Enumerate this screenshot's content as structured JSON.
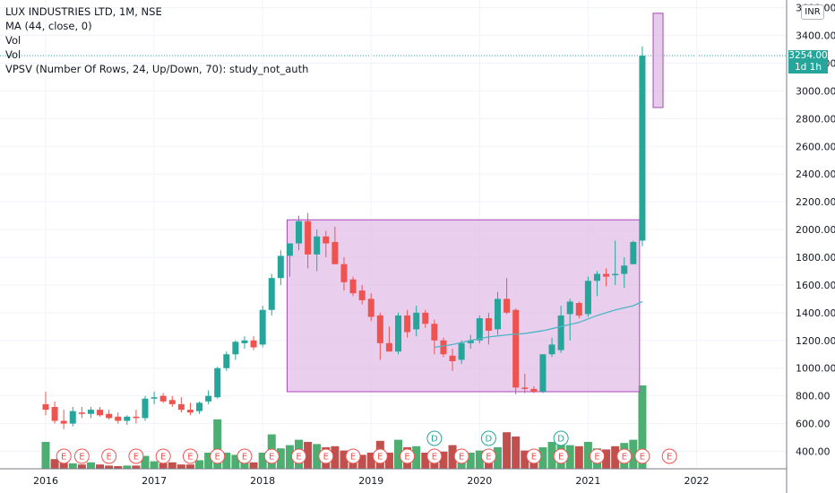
{
  "legend": {
    "title": "LUX INDUSTRIES LTD, 1M, NSE",
    "ma": "MA (44, close, 0)",
    "vol1": "Vol",
    "vol2": "Vol",
    "vpsv": "VPSV (Number Of Rows, 24, Up/Down, 70): study_not_auth"
  },
  "currency_badge": "INR",
  "current_price": {
    "value": "3254.00",
    "interval": "1d 1h"
  },
  "colors": {
    "up": "#26a69a",
    "down": "#ef5350",
    "vol_up": "#4caf71",
    "vol_down": "#c0504d",
    "ma": "#4db6c4",
    "box_fill": "#e1bee7",
    "box_stroke": "#ab47bc"
  },
  "event_icons": {
    "earnings": "E",
    "dividend": "D"
  },
  "chart_data": {
    "type": "candlestick",
    "title": "LUX INDUSTRIES LTD, 1M, NSE",
    "y_range": [
      300,
      3600
    ],
    "y_ticks": [
      400,
      600,
      800,
      1000,
      1200,
      1400,
      1600,
      1800,
      2000,
      2200,
      2400,
      2600,
      2800,
      3000,
      3200,
      3400,
      3600
    ],
    "x_ticks": [
      "2016",
      "2017",
      "2018",
      "2019",
      "2020",
      "2021",
      "2022"
    ],
    "candles": [
      {
        "t": "2016-01",
        "o": 740,
        "h": 830,
        "l": 660,
        "c": 700
      },
      {
        "t": "2016-02",
        "o": 720,
        "h": 760,
        "l": 600,
        "c": 620
      },
      {
        "t": "2016-03",
        "o": 620,
        "h": 700,
        "l": 560,
        "c": 600
      },
      {
        "t": "2016-04",
        "o": 600,
        "h": 720,
        "l": 580,
        "c": 690
      },
      {
        "t": "2016-05",
        "o": 680,
        "h": 720,
        "l": 640,
        "c": 670
      },
      {
        "t": "2016-06",
        "o": 670,
        "h": 720,
        "l": 640,
        "c": 700
      },
      {
        "t": "2016-07",
        "o": 700,
        "h": 720,
        "l": 650,
        "c": 660
      },
      {
        "t": "2016-08",
        "o": 670,
        "h": 700,
        "l": 630,
        "c": 640
      },
      {
        "t": "2016-09",
        "o": 650,
        "h": 680,
        "l": 600,
        "c": 620
      },
      {
        "t": "2016-10",
        "o": 620,
        "h": 660,
        "l": 590,
        "c": 650
      },
      {
        "t": "2016-11",
        "o": 650,
        "h": 700,
        "l": 600,
        "c": 640
      },
      {
        "t": "2016-12",
        "o": 640,
        "h": 800,
        "l": 620,
        "c": 780
      },
      {
        "t": "2017-01",
        "o": 780,
        "h": 830,
        "l": 740,
        "c": 790
      },
      {
        "t": "2017-02",
        "o": 800,
        "h": 820,
        "l": 750,
        "c": 760
      },
      {
        "t": "2017-03",
        "o": 770,
        "h": 800,
        "l": 720,
        "c": 740
      },
      {
        "t": "2017-04",
        "o": 740,
        "h": 790,
        "l": 680,
        "c": 700
      },
      {
        "t": "2017-05",
        "o": 700,
        "h": 750,
        "l": 660,
        "c": 680
      },
      {
        "t": "2017-06",
        "o": 690,
        "h": 760,
        "l": 670,
        "c": 750
      },
      {
        "t": "2017-07",
        "o": 760,
        "h": 840,
        "l": 740,
        "c": 800
      },
      {
        "t": "2017-08",
        "o": 790,
        "h": 1010,
        "l": 780,
        "c": 1000
      },
      {
        "t": "2017-09",
        "o": 1000,
        "h": 1120,
        "l": 980,
        "c": 1100
      },
      {
        "t": "2017-10",
        "o": 1100,
        "h": 1200,
        "l": 1060,
        "c": 1190
      },
      {
        "t": "2017-11",
        "o": 1180,
        "h": 1230,
        "l": 1140,
        "c": 1200
      },
      {
        "t": "2017-12",
        "o": 1200,
        "h": 1230,
        "l": 1130,
        "c": 1150
      },
      {
        "t": "2018-01",
        "o": 1170,
        "h": 1450,
        "l": 1150,
        "c": 1420
      },
      {
        "t": "2018-02",
        "o": 1420,
        "h": 1680,
        "l": 1380,
        "c": 1650
      },
      {
        "t": "2018-03",
        "o": 1650,
        "h": 1850,
        "l": 1600,
        "c": 1810
      },
      {
        "t": "2018-04",
        "o": 1810,
        "h": 1900,
        "l": 1660,
        "c": 1900
      },
      {
        "t": "2018-05",
        "o": 1900,
        "h": 2100,
        "l": 1850,
        "c": 2060
      },
      {
        "t": "2018-06",
        "o": 2060,
        "h": 2120,
        "l": 1720,
        "c": 1820
      },
      {
        "t": "2018-07",
        "o": 1820,
        "h": 2000,
        "l": 1700,
        "c": 1950
      },
      {
        "t": "2018-08",
        "o": 1950,
        "h": 1990,
        "l": 1800,
        "c": 1900
      },
      {
        "t": "2018-09",
        "o": 1910,
        "h": 2020,
        "l": 1760,
        "c": 1750
      },
      {
        "t": "2018-10",
        "o": 1750,
        "h": 1800,
        "l": 1560,
        "c": 1620
      },
      {
        "t": "2018-11",
        "o": 1640,
        "h": 1660,
        "l": 1520,
        "c": 1540
      },
      {
        "t": "2018-12",
        "o": 1560,
        "h": 1600,
        "l": 1460,
        "c": 1490
      },
      {
        "t": "2019-01",
        "o": 1500,
        "h": 1540,
        "l": 1340,
        "c": 1370
      },
      {
        "t": "2019-02",
        "o": 1380,
        "h": 1400,
        "l": 1060,
        "c": 1180
      },
      {
        "t": "2019-03",
        "o": 1180,
        "h": 1300,
        "l": 1120,
        "c": 1120
      },
      {
        "t": "2019-04",
        "o": 1120,
        "h": 1400,
        "l": 1100,
        "c": 1380
      },
      {
        "t": "2019-05",
        "o": 1380,
        "h": 1420,
        "l": 1220,
        "c": 1260
      },
      {
        "t": "2019-06",
        "o": 1280,
        "h": 1450,
        "l": 1230,
        "c": 1400
      },
      {
        "t": "2019-07",
        "o": 1400,
        "h": 1420,
        "l": 1290,
        "c": 1320
      },
      {
        "t": "2019-08",
        "o": 1320,
        "h": 1350,
        "l": 1100,
        "c": 1200
      },
      {
        "t": "2019-09",
        "o": 1200,
        "h": 1220,
        "l": 1080,
        "c": 1100
      },
      {
        "t": "2019-10",
        "o": 1090,
        "h": 1140,
        "l": 980,
        "c": 1050
      },
      {
        "t": "2019-11",
        "o": 1060,
        "h": 1200,
        "l": 1030,
        "c": 1180
      },
      {
        "t": "2019-12",
        "o": 1180,
        "h": 1240,
        "l": 1140,
        "c": 1200
      },
      {
        "t": "2020-01",
        "o": 1200,
        "h": 1380,
        "l": 1180,
        "c": 1360
      },
      {
        "t": "2020-02",
        "o": 1360,
        "h": 1400,
        "l": 1170,
        "c": 1270
      },
      {
        "t": "2020-03",
        "o": 1280,
        "h": 1550,
        "l": 1240,
        "c": 1500
      },
      {
        "t": "2020-04",
        "o": 1500,
        "h": 1650,
        "l": 1390,
        "c": 1400
      },
      {
        "t": "2020-05",
        "o": 1420,
        "h": 1430,
        "l": 810,
        "c": 860
      },
      {
        "t": "2020-06",
        "o": 860,
        "h": 960,
        "l": 820,
        "c": 850
      },
      {
        "t": "2020-07",
        "o": 850,
        "h": 870,
        "l": 820,
        "c": 830
      },
      {
        "t": "2020-08",
        "o": 830,
        "h": 1100,
        "l": 820,
        "c": 1100
      },
      {
        "t": "2020-09",
        "o": 1100,
        "h": 1220,
        "l": 1080,
        "c": 1170
      },
      {
        "t": "2020-10",
        "o": 1130,
        "h": 1450,
        "l": 1110,
        "c": 1380
      },
      {
        "t": "2020-11",
        "o": 1390,
        "h": 1500,
        "l": 1200,
        "c": 1480
      },
      {
        "t": "2020-12",
        "o": 1470,
        "h": 1480,
        "l": 1360,
        "c": 1380
      },
      {
        "t": "2021-01",
        "o": 1390,
        "h": 1660,
        "l": 1370,
        "c": 1630
      },
      {
        "t": "2021-02",
        "o": 1630,
        "h": 1700,
        "l": 1520,
        "c": 1680
      },
      {
        "t": "2021-03",
        "o": 1680,
        "h": 1720,
        "l": 1590,
        "c": 1660
      },
      {
        "t": "2021-04",
        "o": 1670,
        "h": 1920,
        "l": 1600,
        "c": 1680
      },
      {
        "t": "2021-05",
        "o": 1680,
        "h": 1800,
        "l": 1580,
        "c": 1740
      },
      {
        "t": "2021-06",
        "o": 1750,
        "h": 1920,
        "l": 1750,
        "c": 1910
      },
      {
        "t": "2021-07",
        "o": 1920,
        "h": 3320,
        "l": 1880,
        "c": 3254
      }
    ],
    "volume": [
      {
        "t": "2016-01",
        "v": 50,
        "up": true
      },
      {
        "t": "2016-02",
        "v": 18,
        "up": false
      },
      {
        "t": "2016-03",
        "v": 12,
        "up": false
      },
      {
        "t": "2016-04",
        "v": 10,
        "up": true
      },
      {
        "t": "2016-05",
        "v": 8,
        "up": false
      },
      {
        "t": "2016-06",
        "v": 12,
        "up": true
      },
      {
        "t": "2016-07",
        "v": 8,
        "up": false
      },
      {
        "t": "2016-08",
        "v": 6,
        "up": false
      },
      {
        "t": "2016-09",
        "v": 5,
        "up": false
      },
      {
        "t": "2016-10",
        "v": 6,
        "up": true
      },
      {
        "t": "2016-11",
        "v": 6,
        "up": false
      },
      {
        "t": "2016-12",
        "v": 24,
        "up": true
      },
      {
        "t": "2017-01",
        "v": 14,
        "up": true
      },
      {
        "t": "2017-02",
        "v": 10,
        "up": false
      },
      {
        "t": "2017-03",
        "v": 12,
        "up": false
      },
      {
        "t": "2017-04",
        "v": 8,
        "up": false
      },
      {
        "t": "2017-05",
        "v": 8,
        "up": false
      },
      {
        "t": "2017-06",
        "v": 16,
        "up": true
      },
      {
        "t": "2017-07",
        "v": 30,
        "up": true
      },
      {
        "t": "2017-08",
        "v": 92,
        "up": true
      },
      {
        "t": "2017-09",
        "v": 30,
        "up": true
      },
      {
        "t": "2017-10",
        "v": 26,
        "up": true
      },
      {
        "t": "2017-11",
        "v": 18,
        "up": true
      },
      {
        "t": "2017-12",
        "v": 12,
        "up": false
      },
      {
        "t": "2018-01",
        "v": 30,
        "up": true
      },
      {
        "t": "2018-02",
        "v": 64,
        "up": true
      },
      {
        "t": "2018-03",
        "v": 38,
        "up": true
      },
      {
        "t": "2018-04",
        "v": 44,
        "up": true
      },
      {
        "t": "2018-05",
        "v": 54,
        "up": true
      },
      {
        "t": "2018-06",
        "v": 50,
        "up": false
      },
      {
        "t": "2018-07",
        "v": 46,
        "up": true
      },
      {
        "t": "2018-08",
        "v": 40,
        "up": false
      },
      {
        "t": "2018-09",
        "v": 42,
        "up": false
      },
      {
        "t": "2018-10",
        "v": 34,
        "up": false
      },
      {
        "t": "2018-11",
        "v": 30,
        "up": false
      },
      {
        "t": "2018-12",
        "v": 26,
        "up": false
      },
      {
        "t": "2019-01",
        "v": 30,
        "up": false
      },
      {
        "t": "2019-02",
        "v": 52,
        "up": false
      },
      {
        "t": "2019-03",
        "v": 30,
        "up": false
      },
      {
        "t": "2019-04",
        "v": 54,
        "up": true
      },
      {
        "t": "2019-05",
        "v": 40,
        "up": false
      },
      {
        "t": "2019-06",
        "v": 42,
        "up": true
      },
      {
        "t": "2019-07",
        "v": 30,
        "up": false
      },
      {
        "t": "2019-08",
        "v": 34,
        "up": false
      },
      {
        "t": "2019-09",
        "v": 32,
        "up": false
      },
      {
        "t": "2019-10",
        "v": 44,
        "up": false
      },
      {
        "t": "2019-11",
        "v": 34,
        "up": true
      },
      {
        "t": "2019-12",
        "v": 30,
        "up": true
      },
      {
        "t": "2020-01",
        "v": 34,
        "up": true
      },
      {
        "t": "2020-02",
        "v": 32,
        "up": false
      },
      {
        "t": "2020-03",
        "v": 40,
        "up": true
      },
      {
        "t": "2020-04",
        "v": 68,
        "up": false
      },
      {
        "t": "2020-05",
        "v": 60,
        "up": false
      },
      {
        "t": "2020-06",
        "v": 34,
        "up": false
      },
      {
        "t": "2020-07",
        "v": 28,
        "up": false
      },
      {
        "t": "2020-08",
        "v": 40,
        "up": true
      },
      {
        "t": "2020-09",
        "v": 50,
        "up": true
      },
      {
        "t": "2020-10",
        "v": 46,
        "up": true
      },
      {
        "t": "2020-11",
        "v": 44,
        "up": true
      },
      {
        "t": "2020-12",
        "v": 42,
        "up": false
      },
      {
        "t": "2021-01",
        "v": 50,
        "up": true
      },
      {
        "t": "2021-02",
        "v": 38,
        "up": true
      },
      {
        "t": "2021-03",
        "v": 36,
        "up": false
      },
      {
        "t": "2021-04",
        "v": 42,
        "up": false
      },
      {
        "t": "2021-05",
        "v": 48,
        "up": true
      },
      {
        "t": "2021-06",
        "v": 54,
        "up": true
      },
      {
        "t": "2021-07",
        "v": 155,
        "up": true
      }
    ],
    "moving_average": [
      {
        "t": "2019-08",
        "v": 1150
      },
      {
        "t": "2019-10",
        "v": 1170
      },
      {
        "t": "2019-12",
        "v": 1200
      },
      {
        "t": "2020-02",
        "v": 1225
      },
      {
        "t": "2020-04",
        "v": 1240
      },
      {
        "t": "2020-06",
        "v": 1250
      },
      {
        "t": "2020-08",
        "v": 1270
      },
      {
        "t": "2020-10",
        "v": 1300
      },
      {
        "t": "2020-12",
        "v": 1330
      },
      {
        "t": "2021-02",
        "v": 1380
      },
      {
        "t": "2021-04",
        "v": 1420
      },
      {
        "t": "2021-06",
        "v": 1450
      },
      {
        "t": "2021-07",
        "v": 1480
      }
    ],
    "range_box": {
      "t_start": "2018-04",
      "t_end": "2021-06",
      "y_low": 830,
      "y_high": 2070
    },
    "projection_box": {
      "t": "2021-08",
      "y_low": 2880,
      "y_high": 3560
    },
    "events": [
      {
        "t": "2016-03",
        "type": "earnings"
      },
      {
        "t": "2016-05",
        "type": "earnings"
      },
      {
        "t": "2016-08",
        "type": "earnings"
      },
      {
        "t": "2016-11",
        "type": "earnings"
      },
      {
        "t": "2017-02",
        "type": "earnings"
      },
      {
        "t": "2017-05",
        "type": "earnings"
      },
      {
        "t": "2017-08",
        "type": "earnings"
      },
      {
        "t": "2017-11",
        "type": "earnings"
      },
      {
        "t": "2018-02",
        "type": "earnings"
      },
      {
        "t": "2018-05",
        "type": "earnings"
      },
      {
        "t": "2018-08",
        "type": "earnings"
      },
      {
        "t": "2018-11",
        "type": "earnings"
      },
      {
        "t": "2019-02",
        "type": "earnings"
      },
      {
        "t": "2019-05",
        "type": "earnings"
      },
      {
        "t": "2019-08",
        "type": "earnings"
      },
      {
        "t": "2019-08",
        "type": "dividend"
      },
      {
        "t": "2019-11",
        "type": "earnings"
      },
      {
        "t": "2020-02",
        "type": "earnings"
      },
      {
        "t": "2020-02",
        "type": "dividend"
      },
      {
        "t": "2020-07",
        "type": "earnings"
      },
      {
        "t": "2020-10",
        "type": "earnings"
      },
      {
        "t": "2020-10",
        "type": "dividend"
      },
      {
        "t": "2021-02",
        "type": "earnings"
      },
      {
        "t": "2021-05",
        "type": "earnings"
      },
      {
        "t": "2021-07",
        "type": "earnings"
      },
      {
        "t": "2021-10",
        "type": "earnings"
      }
    ]
  }
}
